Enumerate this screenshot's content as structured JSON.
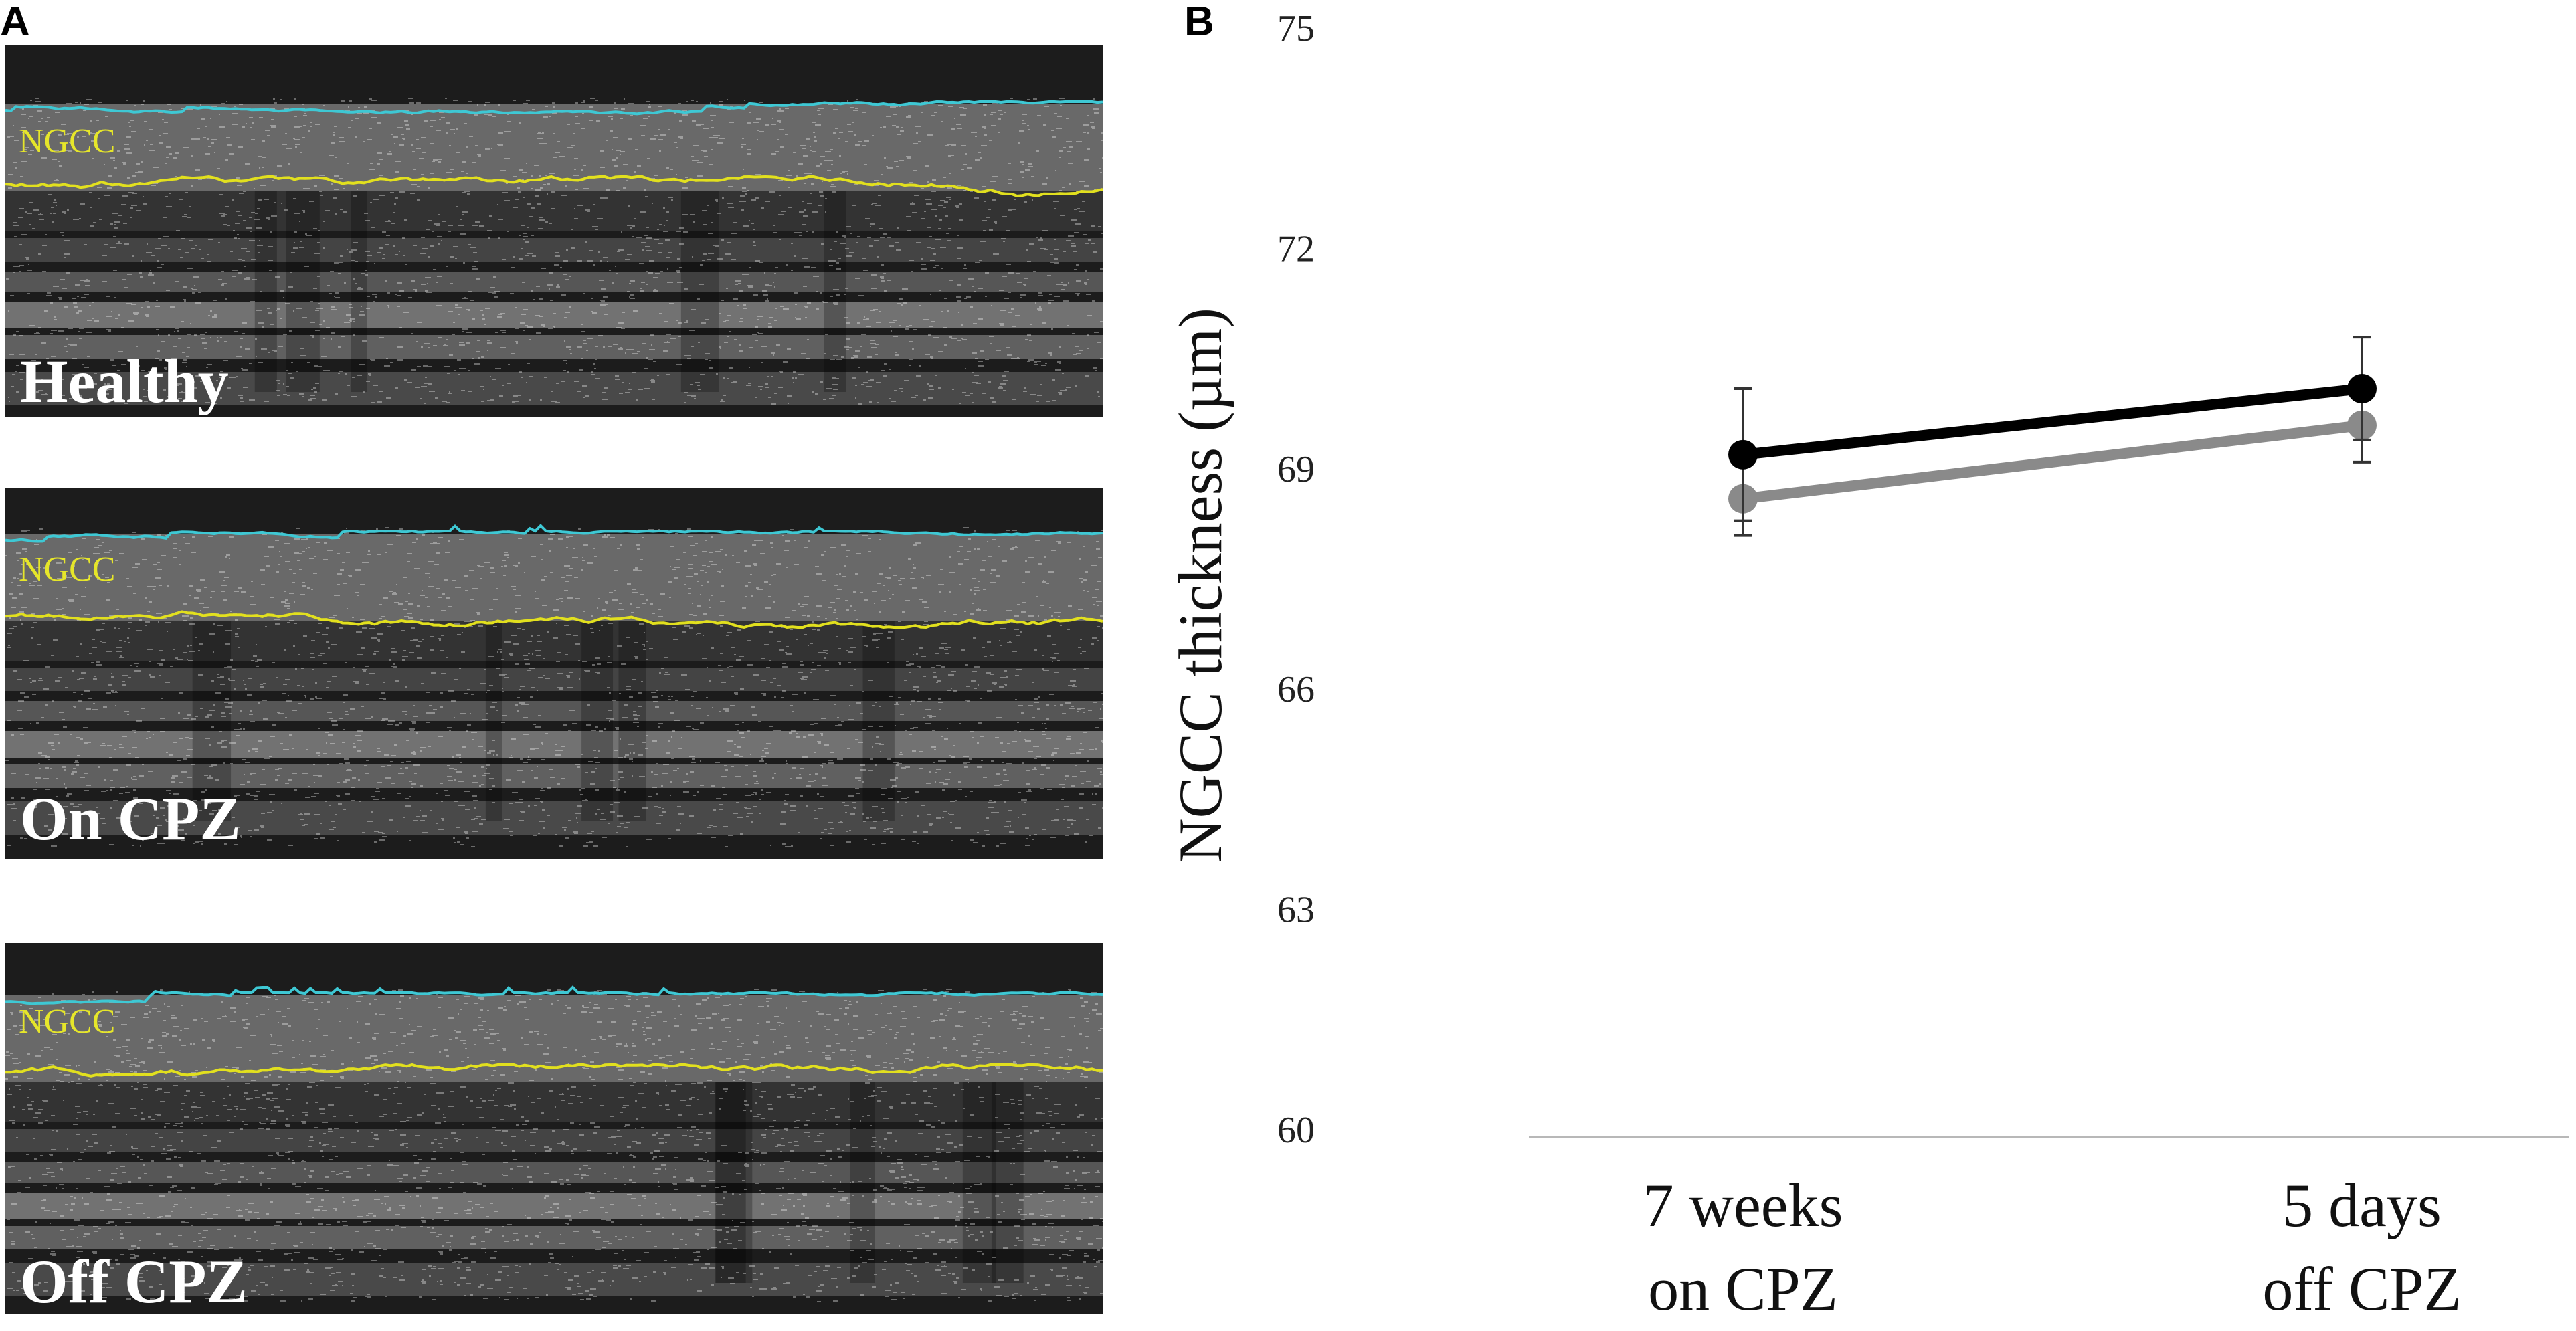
{
  "panels": [
    {
      "letter": "A"
    },
    {
      "letter": "B"
    }
  ],
  "oct_images": [
    {
      "label": "Healthy",
      "layer_label": "NGCC"
    },
    {
      "label": "On CPZ",
      "layer_label": "NGCC"
    },
    {
      "label": "Off CPZ",
      "layer_label": "NGCC"
    }
  ],
  "colors": {
    "upper_boundary": "#3ec8d4",
    "lower_boundary": "#e2e01e",
    "series_1": "#000000",
    "series_2": "#8a8a8a",
    "axis_line": "#b8b8b8"
  },
  "chart_data": {
    "type": "line",
    "categories": [
      "7 weeks on CPZ",
      "5 days off CPZ"
    ],
    "category_lines": [
      [
        "7 weeks",
        "on CPZ"
      ],
      [
        "5 days",
        "off CPZ"
      ]
    ],
    "ylabel": "NGCC thickness (µm)",
    "ylim": [
      60,
      75
    ],
    "yticks": [
      "60",
      "63",
      "66",
      "69",
      "72",
      "75"
    ],
    "series": [
      {
        "values": [
          69.2,
          70.1
        ],
        "error": [
          0.9,
          0.7
        ],
        "color": "#000000"
      },
      {
        "values": [
          68.6,
          69.6
        ],
        "error": [
          0.5,
          0.5
        ],
        "color": "#8a8a8a"
      }
    ],
    "grid": false
  }
}
